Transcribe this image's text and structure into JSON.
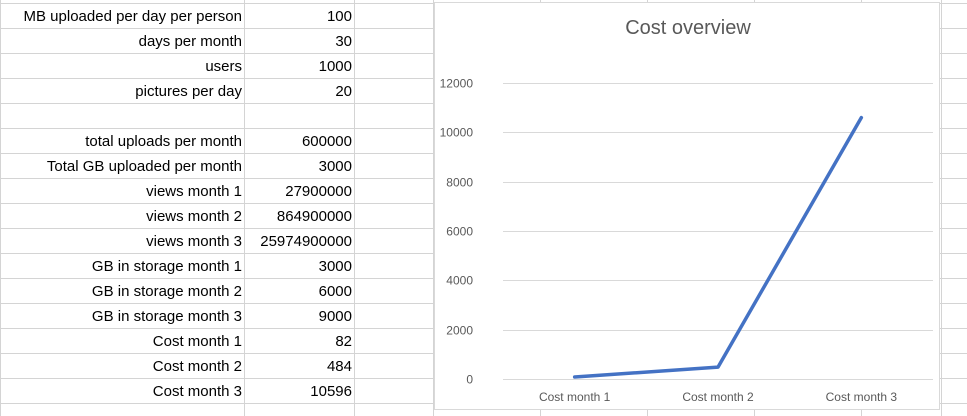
{
  "sheet": {
    "rows": [
      {
        "label": "MB uploaded per day per person",
        "value": "100"
      },
      {
        "label": "days per month",
        "value": "30"
      },
      {
        "label": "users",
        "value": "1000"
      },
      {
        "label": "pictures per day",
        "value": "20"
      },
      {
        "label": "",
        "value": ""
      },
      {
        "label": "total uploads per month",
        "value": "600000"
      },
      {
        "label": "Total GB uploaded per month",
        "value": "3000"
      },
      {
        "label": "views month 1",
        "value": "27900000"
      },
      {
        "label": "views month 2",
        "value": "864900000"
      },
      {
        "label": "views month 3",
        "value": "25974900000"
      },
      {
        "label": "GB in storage month 1",
        "value": "3000"
      },
      {
        "label": "GB in storage month 2",
        "value": "6000"
      },
      {
        "label": "GB in storage month 3",
        "value": "9000"
      },
      {
        "label": "Cost month 1",
        "value": "82"
      },
      {
        "label": "Cost month 2",
        "value": "484"
      },
      {
        "label": "Cost month 3",
        "value": "10596"
      }
    ]
  },
  "chart_data": {
    "type": "line",
    "title": "Cost overview",
    "categories": [
      "Cost month 1",
      "Cost month 2",
      "Cost month 3"
    ],
    "series": [
      {
        "values": [
          82,
          484,
          10596
        ]
      }
    ],
    "xlabel": "",
    "ylabel": "",
    "ylim": [
      0,
      12000
    ],
    "yticks": [
      "0",
      "2000",
      "4000",
      "6000",
      "8000",
      "10000",
      "12000"
    ],
    "grid": true,
    "legend": "none",
    "colors": {
      "line": "#4472c4",
      "grid": "#d9d9d9",
      "text": "#595959"
    }
  }
}
